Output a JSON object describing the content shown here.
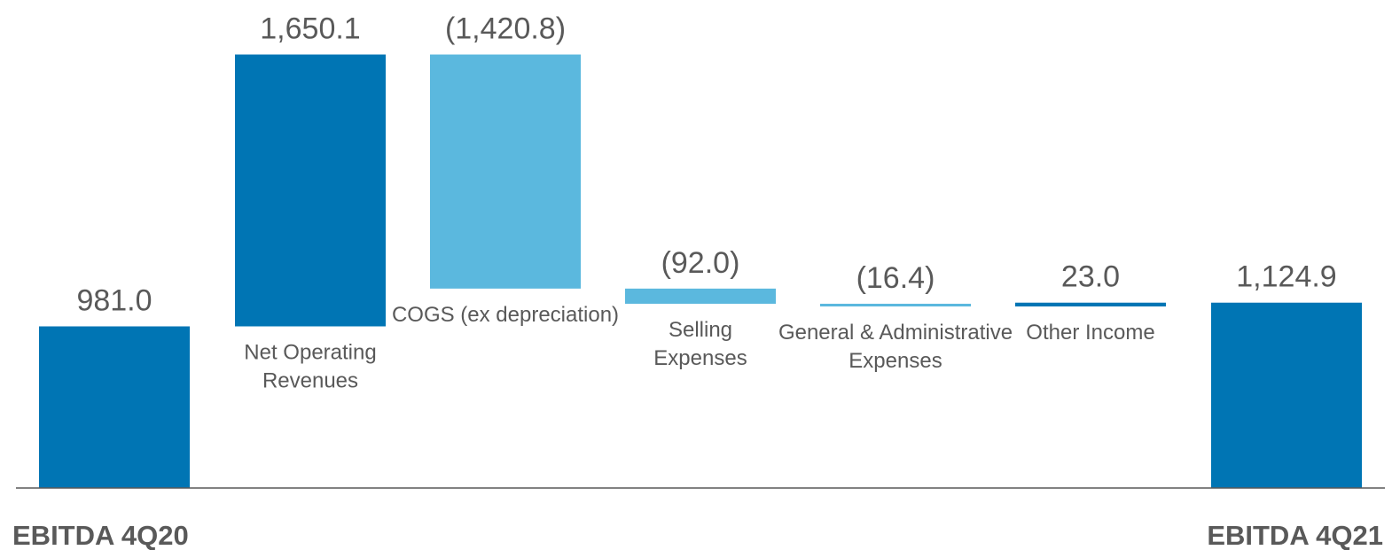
{
  "chart_data": {
    "type": "bar",
    "subtype": "waterfall",
    "categories": [
      "EBITDA 4Q20",
      "Net Operating Revenues",
      "COGS (ex depreciation)",
      "Selling Expenses",
      "General & Administrative Expenses",
      "Other Income",
      "EBITDA 4Q21"
    ],
    "values": [
      981.0,
      1650.1,
      -1420.8,
      -92.0,
      -16.4,
      23.0,
      1124.9
    ],
    "value_labels": [
      "981.0",
      "1,650.1",
      "(1,420.8)",
      "(92.0)",
      "(16.4)",
      "23.0",
      "1,124.9"
    ],
    "bar_kinds": [
      "total",
      "increase",
      "decrease",
      "decrease",
      "decrease",
      "increase",
      "total"
    ],
    "colors": {
      "total": "#0075B4",
      "increase": "#0075B4",
      "decrease": "#5BB8DE",
      "axis": "#595959",
      "text": "#595959"
    },
    "title": "",
    "xlabel": "",
    "ylabel": "",
    "ylim": [
      0,
      2900
    ],
    "grid": false,
    "legend": "none"
  }
}
